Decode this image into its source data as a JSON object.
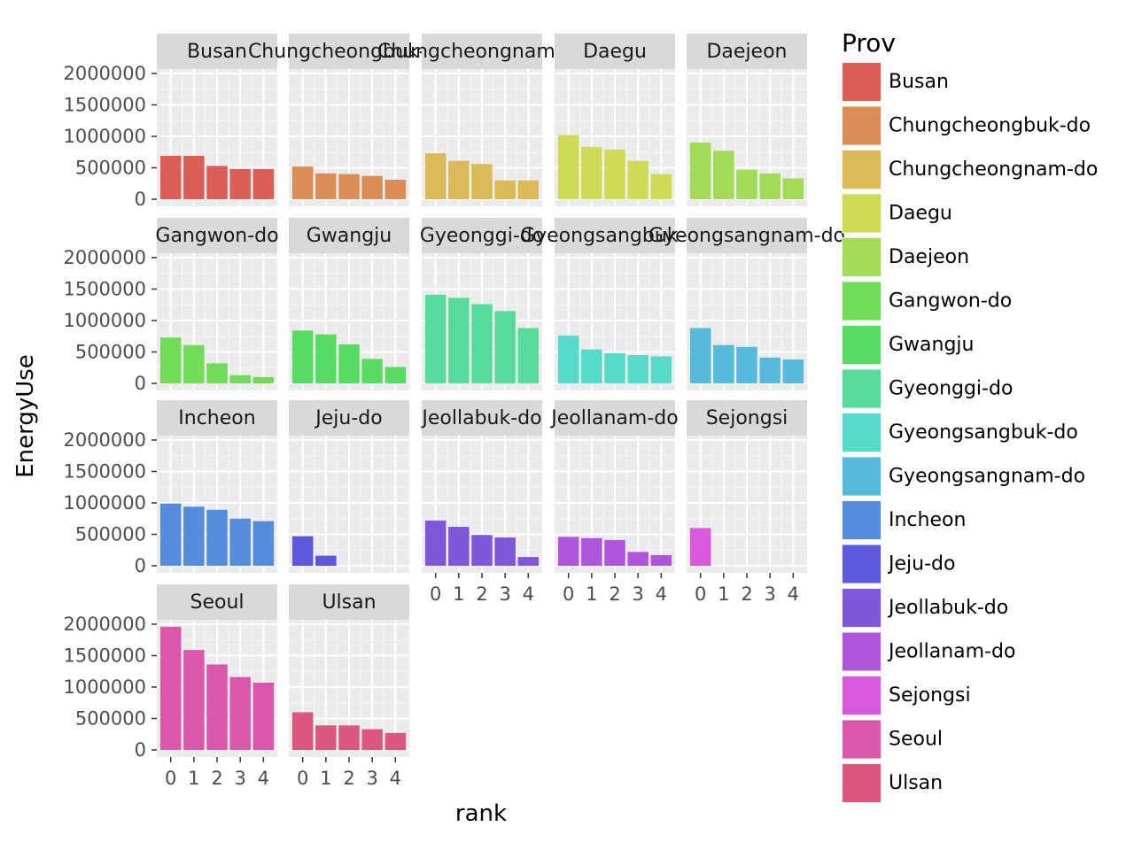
{
  "chart_data": {
    "type": "bar",
    "facet_by": "Prov",
    "xlabel": "rank",
    "ylabel": "EnergyUse",
    "x_ticks": [
      "0",
      "1",
      "2",
      "3",
      "4"
    ],
    "y_ticks": [
      "0",
      "500000",
      "1000000",
      "1500000",
      "2000000"
    ],
    "ylim": [
      0,
      2000000
    ],
    "legend": {
      "title": "Prov",
      "position": "right"
    },
    "grid": true,
    "panels": [
      {
        "name": "Busan",
        "label": "Busan",
        "color": "#db5f57",
        "values": [
          690000,
          690000,
          530000,
          480000,
          480000
        ]
      },
      {
        "name": "Chungcheongbuk-do",
        "label": "Chungcheongbuk-do",
        "color": "#db8d57",
        "values": [
          520000,
          410000,
          400000,
          370000,
          310000
        ]
      },
      {
        "name": "Chungcheongnam-do",
        "label": "Chungcheongnam-do",
        "color": "#dbbb57",
        "values": [
          730000,
          610000,
          560000,
          300000,
          300000
        ]
      },
      {
        "name": "Daegu",
        "label": "Daegu",
        "color": "#cfdb57",
        "values": [
          1020000,
          830000,
          790000,
          610000,
          400000
        ]
      },
      {
        "name": "Daejeon",
        "label": "Daejeon",
        "color": "#a1db57",
        "values": [
          900000,
          770000,
          470000,
          410000,
          330000
        ]
      },
      {
        "name": "Gangwon-do",
        "label": "Gangwon-do",
        "color": "#72db57",
        "values": [
          730000,
          610000,
          320000,
          130000,
          100000
        ]
      },
      {
        "name": "Gwangju",
        "label": "Gwangju",
        "color": "#57db63",
        "values": [
          840000,
          780000,
          620000,
          390000,
          260000
        ]
      },
      {
        "name": "Gyeonggi-do",
        "label": "Gyeonggi-do",
        "color": "#57db9b",
        "values": [
          1410000,
          1360000,
          1260000,
          1150000,
          880000
        ]
      },
      {
        "name": "Gyeongsangbuk-do",
        "label": "Gyeongsangbuk-do",
        "color": "#57dbc9",
        "values": [
          760000,
          540000,
          480000,
          450000,
          430000
        ]
      },
      {
        "name": "Gyeongsangnam-do",
        "label": "Gyeongsangnam-do",
        "color": "#57b9db",
        "values": [
          880000,
          610000,
          580000,
          410000,
          380000
        ]
      },
      {
        "name": "Incheon",
        "label": "Incheon",
        "color": "#578bdb",
        "values": [
          990000,
          940000,
          890000,
          750000,
          710000
        ]
      },
      {
        "name": "Jeju-do",
        "label": "Jeju-do",
        "color": "#5d57db",
        "values": [
          470000,
          160000
        ]
      },
      {
        "name": "Jeollabuk-do",
        "label": "Jeollabuk-do",
        "color": "#8057db",
        "values": [
          720000,
          620000,
          490000,
          450000,
          140000
        ]
      },
      {
        "name": "Jeollanam-do",
        "label": "Jeollanam-do",
        "color": "#ae57db",
        "values": [
          460000,
          440000,
          410000,
          220000,
          170000
        ]
      },
      {
        "name": "Sejongsi",
        "label": "Sejongsi",
        "color": "#db57db",
        "values": [
          600000
        ]
      },
      {
        "name": "Seoul",
        "label": "Seoul",
        "color": "#db57ab",
        "values": [
          1960000,
          1590000,
          1360000,
          1160000,
          1070000
        ]
      },
      {
        "name": "Ulsan",
        "label": "Ulsan",
        "color": "#db577d",
        "values": [
          600000,
          390000,
          390000,
          330000,
          270000
        ]
      }
    ]
  }
}
